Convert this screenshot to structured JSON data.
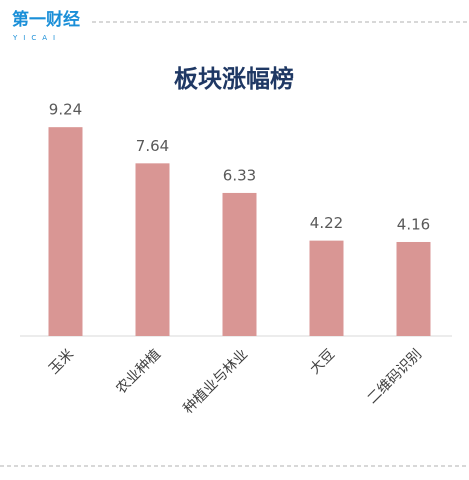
{
  "logo": {
    "name": "第一财经",
    "sub": "YICAI"
  },
  "chart_data": {
    "type": "bar",
    "title": "板块涨幅榜",
    "categories": [
      "玉米",
      "农业种植",
      "种植业与林业",
      "大豆",
      "二维码识别"
    ],
    "values": [
      9.24,
      7.64,
      6.33,
      4.22,
      4.16
    ],
    "color": "#d99694"
  }
}
